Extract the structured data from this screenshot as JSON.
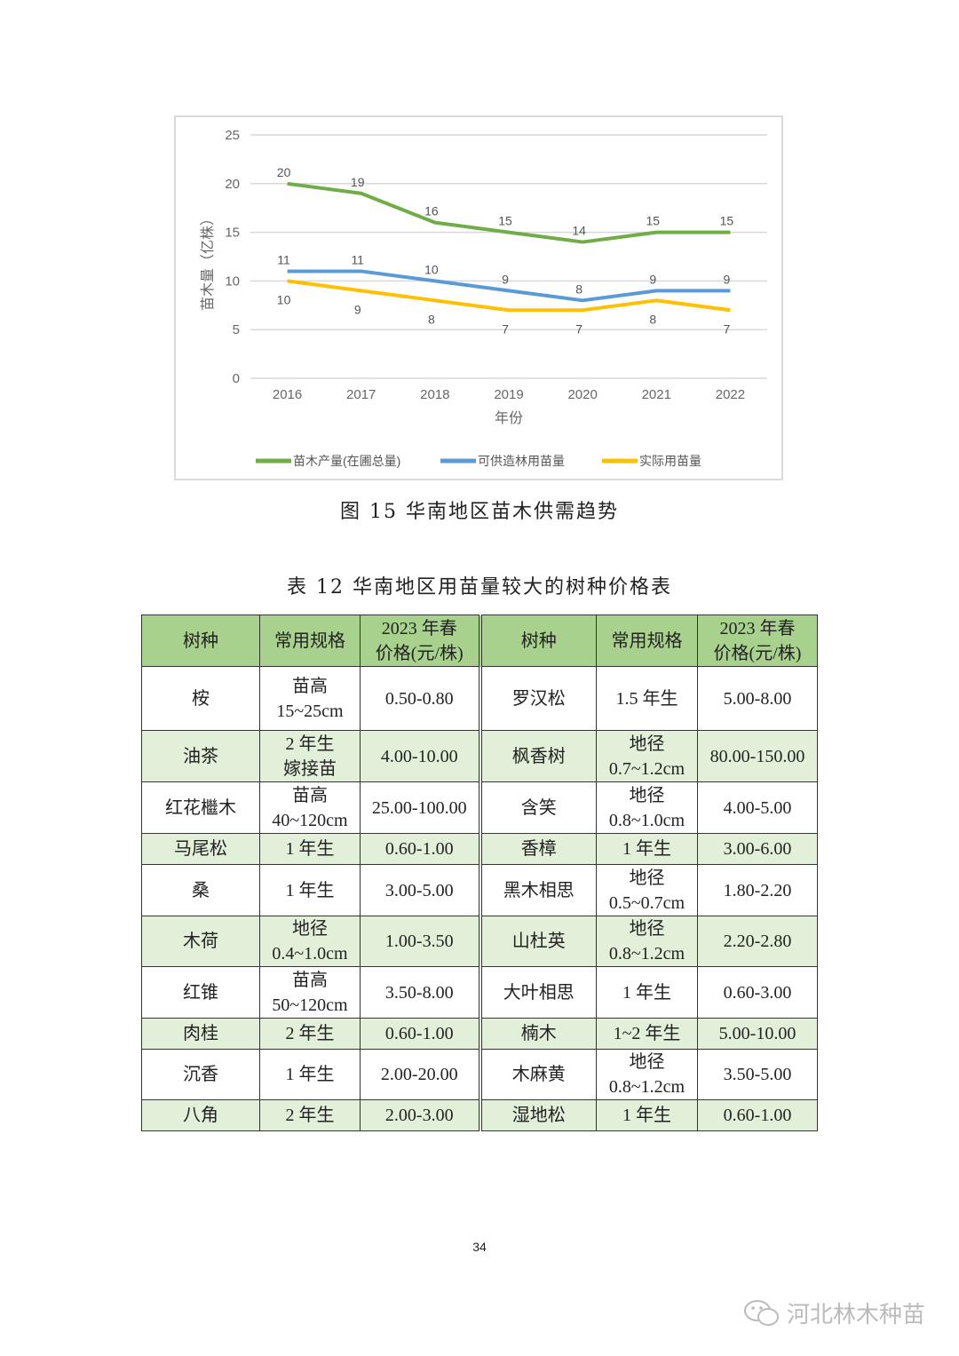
{
  "figure_caption": "图 15  华南地区苗木供需趋势",
  "table_caption": "表 12  华南地区用苗量较大的树种价格表",
  "page_number": "34",
  "watermark": "河北林木种苗",
  "chart_data": {
    "type": "line",
    "title": "",
    "xlabel": "年份",
    "ylabel": "苗木量（亿株）",
    "categories": [
      "2016",
      "2017",
      "2018",
      "2019",
      "2020",
      "2021",
      "2022"
    ],
    "ylim": [
      0,
      25
    ],
    "yticks": [
      0,
      5,
      10,
      15,
      20,
      25
    ],
    "grid": true,
    "legend_position": "bottom",
    "series": [
      {
        "name": "苗木产量(在圃总量)",
        "color": "#70ad47",
        "values": [
          20,
          19,
          16,
          15,
          14,
          15,
          15
        ]
      },
      {
        "name": "可供造林用苗量",
        "color": "#5b9bd5",
        "values": [
          11,
          11,
          10,
          9,
          8,
          9,
          9
        ]
      },
      {
        "name": "实际用苗量",
        "color": "#ffc000",
        "values": [
          10,
          9,
          8,
          7,
          7,
          8,
          7
        ]
      }
    ]
  },
  "table": {
    "header": [
      "树种",
      "常用规格",
      "2023 年春\n价格(元/株)",
      "树种",
      "常用规格",
      "2023 年春\n价格(元/株)"
    ],
    "rows": [
      [
        "桉",
        "苗高\n15~25cm",
        "0.50-0.80",
        "罗汉松",
        "1.5 年生",
        "5.00-8.00"
      ],
      [
        "油茶",
        "2 年生\n嫁接苗",
        "4.00-10.00",
        "枫香树",
        "地径\n0.7~1.2cm",
        "80.00-150.00"
      ],
      [
        "红花檵木",
        "苗高\n40~120cm",
        "25.00-100.00",
        "含笑",
        "地径\n0.8~1.0cm",
        "4.00-5.00"
      ],
      [
        "马尾松",
        "1 年生",
        "0.60-1.00",
        "香樟",
        "1 年生",
        "3.00-6.00"
      ],
      [
        "桑",
        "1 年生",
        "3.00-5.00",
        "黑木相思",
        "地径\n0.5~0.7cm",
        "1.80-2.20"
      ],
      [
        "木荷",
        "地径\n0.4~1.0cm",
        "1.00-3.50",
        "山杜英",
        "地径\n0.8~1.2cm",
        "2.20-2.80"
      ],
      [
        "红锥",
        "苗高\n50~120cm",
        "3.50-8.00",
        "大叶相思",
        "1 年生",
        "0.60-3.00"
      ],
      [
        "肉桂",
        "2 年生",
        "0.60-1.00",
        "楠木",
        "1~2 年生",
        "5.00-10.00"
      ],
      [
        "沉香",
        "1 年生",
        "2.00-20.00",
        "木麻黄",
        "地径\n0.8~1.2cm",
        "3.50-5.00"
      ],
      [
        "八角",
        "2 年生",
        "2.00-3.00",
        "湿地松",
        "1 年生",
        "0.60-1.00"
      ]
    ]
  }
}
